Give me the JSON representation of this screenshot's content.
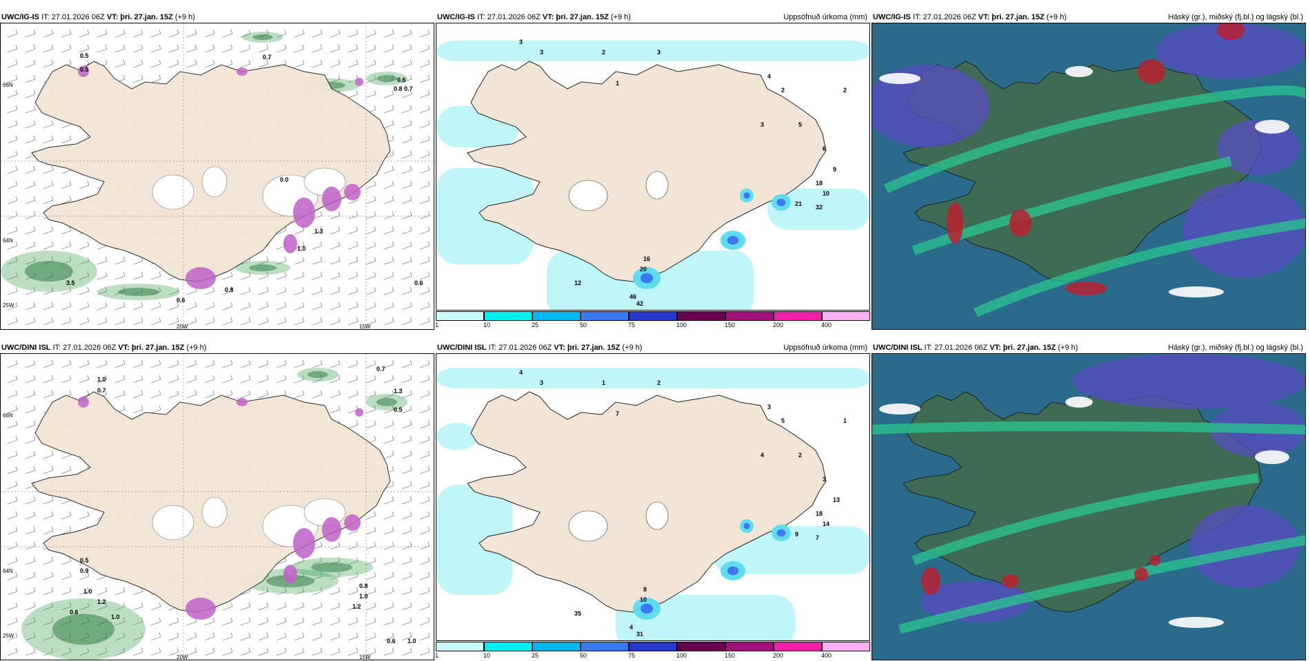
{
  "panels": [
    {
      "model": "UWC/IG-IS",
      "it": "IT: 27.01.2026 06Z",
      "vt_label": "VT:",
      "vt": "þri. 27.jan. 15Z",
      "lead": "(+9 h)",
      "right": ""
    },
    {
      "model": "UWC/IG-IS",
      "it": "IT: 27.01.2026 06Z",
      "vt_label": "VT:",
      "vt": "þri. 27.jan. 15Z",
      "lead": "(+9 h)",
      "right": "Uppsöfnuð úrkoma (mm)"
    },
    {
      "model": "UWC/IG-IS",
      "it": "IT: 27.01.2026 06Z",
      "vt_label": "VT:",
      "vt": "þri. 27.jan. 15Z",
      "lead": "(+9 h)",
      "right": "Háský (gr.), miðský (fj.bl.) og lágský (bl.)"
    },
    {
      "model": "UWC/DINI ISL",
      "it": "IT: 27.01.2026 06Z",
      "vt_label": "VT:",
      "vt": "þri. 27.jan. 15Z",
      "lead": "(+9 h)",
      "right": ""
    },
    {
      "model": "UWC/DINI ISL",
      "it": "IT: 27.01.2026 06Z",
      "vt_label": "VT:",
      "vt": "þri. 27.jan. 15Z",
      "lead": "(+9 h)",
      "right": "Uppsöfnuð úrkoma (mm)"
    },
    {
      "model": "UWC/DINI ISL",
      "it": "IT: 27.01.2026 06Z",
      "vt_label": "VT:",
      "vt": "þri. 27.jan. 15Z",
      "lead": "(+9 h)",
      "right": "Háský (gr.), miðský (fj.bl.) og lágský (bl.)"
    }
  ],
  "axes": {
    "lat_top": "66N",
    "lat_mid": "64N",
    "lat_low": "25W",
    "lon_a": "20W",
    "lon_b": "15W"
  },
  "colorbar": {
    "ticks": [
      "1",
      "10",
      "25",
      "50",
      "75",
      "100",
      "150",
      "200",
      "400"
    ],
    "colors": [
      "#c8fbfb",
      "#00f0f0",
      "#00b8f0",
      "#3a78f0",
      "#2838c8",
      "#6a0050",
      "#a0107a",
      "#f020a8",
      "#f8b0f0"
    ]
  },
  "palette": {
    "land": "#f3e5d5",
    "sea": "#ffffff",
    "precip_light": "#b8f5f8",
    "precip_mid": "#60dcf0",
    "cloud_low": "#3a7ab8",
    "cloud_mid": "#2e8a6a",
    "cloud_high": "#b82030",
    "wind_green": "#3ca050"
  },
  "labels": {
    "p1": [
      "0.5",
      "0.5",
      "0.7",
      "0.6",
      "0.8",
      "0.7",
      "0.6",
      "0.6",
      "0.8",
      "3.5",
      "1.0",
      "1.3",
      "0.0"
    ],
    "p2": [
      "3",
      "3",
      "2",
      "3",
      "4",
      "2",
      "3",
      "5",
      "6",
      "9",
      "10",
      "18",
      "21",
      "32",
      "16",
      "20",
      "46",
      "42",
      "12",
      "1",
      "2"
    ],
    "p4": [
      "1.0",
      "0.7",
      "0.7",
      "1.3",
      "0.5",
      "0.5",
      "0.9",
      "1.0",
      "1.2",
      "0.6",
      "1.0",
      "0.8",
      "1.0",
      "1.2",
      "0.6",
      "1.0"
    ],
    "p5": [
      "4",
      "3",
      "1",
      "2",
      "3",
      "5",
      "4",
      "2",
      "3",
      "13",
      "14",
      "18",
      "9",
      "7",
      "8",
      "10",
      "4",
      "31",
      "35",
      "7",
      "1"
    ]
  }
}
